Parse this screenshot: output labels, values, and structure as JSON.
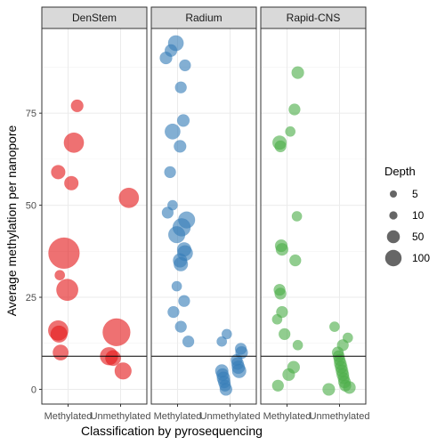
{
  "chart_data": {
    "type": "scatter",
    "xlabel": "Classification by pyrosequencing",
    "ylabel": "Average methylation per nanopore",
    "ylim": [
      -4,
      98
    ],
    "yticks": [
      0,
      25,
      50,
      75
    ],
    "categories": [
      "Methylated",
      "Unmethylated"
    ],
    "reference_line_y": 9,
    "panels": [
      {
        "name": "DenStem",
        "color": "#e41a1c",
        "points": [
          {
            "x": "Methylated",
            "y": 77,
            "depth": 10
          },
          {
            "x": "Methylated",
            "y": 67,
            "depth": 40
          },
          {
            "x": "Methylated",
            "y": 59,
            "depth": 15
          },
          {
            "x": "Methylated",
            "y": 56,
            "depth": 15
          },
          {
            "x": "Methylated",
            "y": 37,
            "depth": 120
          },
          {
            "x": "Methylated",
            "y": 31,
            "depth": 5
          },
          {
            "x": "Methylated",
            "y": 27,
            "depth": 50
          },
          {
            "x": "Methylated",
            "y": 16,
            "depth": 40
          },
          {
            "x": "Methylated",
            "y": 15,
            "depth": 25
          },
          {
            "x": "Methylated",
            "y": 10,
            "depth": 20
          },
          {
            "x": "Unmethylated",
            "y": 52,
            "depth": 40
          },
          {
            "x": "Unmethylated",
            "y": 15.5,
            "depth": 90
          },
          {
            "x": "Unmethylated",
            "y": 9,
            "depth": 30
          },
          {
            "x": "Unmethylated",
            "y": 8.5,
            "depth": 20
          },
          {
            "x": "Unmethylated",
            "y": 5,
            "depth": 25
          }
        ]
      },
      {
        "name": "Radium",
        "color": "#377eb8",
        "points": [
          {
            "x": "Methylated",
            "y": 94,
            "depth": 20
          },
          {
            "x": "Methylated",
            "y": 92,
            "depth": 10
          },
          {
            "x": "Methylated",
            "y": 90,
            "depth": 10
          },
          {
            "x": "Methylated",
            "y": 88,
            "depth": 8
          },
          {
            "x": "Methylated",
            "y": 82,
            "depth": 8
          },
          {
            "x": "Methylated",
            "y": 73,
            "depth": 10
          },
          {
            "x": "Methylated",
            "y": 70,
            "depth": 20
          },
          {
            "x": "Methylated",
            "y": 66,
            "depth": 10
          },
          {
            "x": "Methylated",
            "y": 59,
            "depth": 8
          },
          {
            "x": "Methylated",
            "y": 50,
            "depth": 5
          },
          {
            "x": "Methylated",
            "y": 48,
            "depth": 8
          },
          {
            "x": "Methylated",
            "y": 46,
            "depth": 25
          },
          {
            "x": "Methylated",
            "y": 44,
            "depth": 30
          },
          {
            "x": "Methylated",
            "y": 42,
            "depth": 25
          },
          {
            "x": "Methylated",
            "y": 38,
            "depth": 15
          },
          {
            "x": "Methylated",
            "y": 37,
            "depth": 20
          },
          {
            "x": "Methylated",
            "y": 35,
            "depth": 15
          },
          {
            "x": "Methylated",
            "y": 34,
            "depth": 15
          },
          {
            "x": "Methylated",
            "y": 28,
            "depth": 5
          },
          {
            "x": "Methylated",
            "y": 24,
            "depth": 8
          },
          {
            "x": "Methylated",
            "y": 21,
            "depth": 8
          },
          {
            "x": "Methylated",
            "y": 17,
            "depth": 8
          },
          {
            "x": "Methylated",
            "y": 13,
            "depth": 8
          },
          {
            "x": "Unmethylated",
            "y": 15,
            "depth": 5
          },
          {
            "x": "Unmethylated",
            "y": 13,
            "depth": 5
          },
          {
            "x": "Unmethylated",
            "y": 11,
            "depth": 8
          },
          {
            "x": "Unmethylated",
            "y": 10,
            "depth": 10
          },
          {
            "x": "Unmethylated",
            "y": 8,
            "depth": 8
          },
          {
            "x": "Unmethylated",
            "y": 7,
            "depth": 10
          },
          {
            "x": "Unmethylated",
            "y": 6,
            "depth": 12
          },
          {
            "x": "Unmethylated",
            "y": 5,
            "depth": 15
          },
          {
            "x": "Unmethylated",
            "y": 5,
            "depth": 12
          },
          {
            "x": "Unmethylated",
            "y": 4,
            "depth": 10
          },
          {
            "x": "Unmethylated",
            "y": 3,
            "depth": 12
          },
          {
            "x": "Unmethylated",
            "y": 2,
            "depth": 10
          },
          {
            "x": "Unmethylated",
            "y": 1,
            "depth": 8
          },
          {
            "x": "Unmethylated",
            "y": 0,
            "depth": 10
          }
        ]
      },
      {
        "name": "Rapid-CNS",
        "color": "#4daf4a",
        "points": [
          {
            "x": "Methylated",
            "y": 86,
            "depth": 10
          },
          {
            "x": "Methylated",
            "y": 76,
            "depth": 8
          },
          {
            "x": "Methylated",
            "y": 70,
            "depth": 5
          },
          {
            "x": "Methylated",
            "y": 67,
            "depth": 15
          },
          {
            "x": "Methylated",
            "y": 66,
            "depth": 8
          },
          {
            "x": "Methylated",
            "y": 47,
            "depth": 5
          },
          {
            "x": "Methylated",
            "y": 39,
            "depth": 10
          },
          {
            "x": "Methylated",
            "y": 38,
            "depth": 10
          },
          {
            "x": "Methylated",
            "y": 35,
            "depth": 8
          },
          {
            "x": "Methylated",
            "y": 27,
            "depth": 8
          },
          {
            "x": "Methylated",
            "y": 26,
            "depth": 8
          },
          {
            "x": "Methylated",
            "y": 21,
            "depth": 8
          },
          {
            "x": "Methylated",
            "y": 19,
            "depth": 5
          },
          {
            "x": "Methylated",
            "y": 15,
            "depth": 8
          },
          {
            "x": "Methylated",
            "y": 12,
            "depth": 5
          },
          {
            "x": "Methylated",
            "y": 6,
            "depth": 10
          },
          {
            "x": "Methylated",
            "y": 4,
            "depth": 10
          },
          {
            "x": "Methylated",
            "y": 1,
            "depth": 8
          },
          {
            "x": "Unmethylated",
            "y": 17,
            "depth": 5
          },
          {
            "x": "Unmethylated",
            "y": 14,
            "depth": 5
          },
          {
            "x": "Unmethylated",
            "y": 12,
            "depth": 8
          },
          {
            "x": "Unmethylated",
            "y": 10,
            "depth": 8
          },
          {
            "x": "Unmethylated",
            "y": 9,
            "depth": 8
          },
          {
            "x": "Unmethylated",
            "y": 8,
            "depth": 8
          },
          {
            "x": "Unmethylated",
            "y": 7,
            "depth": 10
          },
          {
            "x": "Unmethylated",
            "y": 6,
            "depth": 10
          },
          {
            "x": "Unmethylated",
            "y": 5,
            "depth": 10
          },
          {
            "x": "Unmethylated",
            "y": 4,
            "depth": 10
          },
          {
            "x": "Unmethylated",
            "y": 3,
            "depth": 8
          },
          {
            "x": "Unmethylated",
            "y": 2,
            "depth": 10
          },
          {
            "x": "Unmethylated",
            "y": 1,
            "depth": 8
          },
          {
            "x": "Unmethylated",
            "y": 0.5,
            "depth": 10
          },
          {
            "x": "Unmethylated",
            "y": 0,
            "depth": 10
          }
        ]
      }
    ],
    "legend": {
      "title": "Depth",
      "position": "right",
      "entries": [
        {
          "label": "5",
          "depth": 5
        },
        {
          "label": "10",
          "depth": 10
        },
        {
          "label": "50",
          "depth": 50
        },
        {
          "label": "100",
          "depth": 100
        }
      ]
    }
  }
}
